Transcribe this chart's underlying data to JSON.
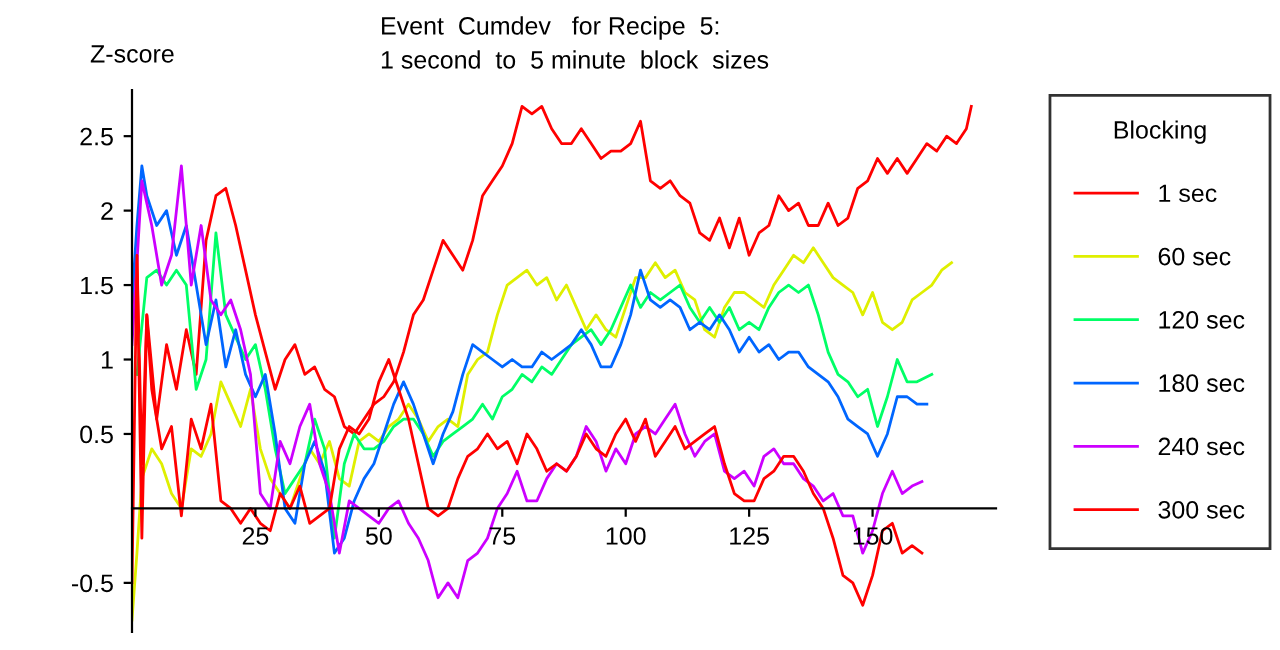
{
  "chart_data": {
    "type": "line",
    "title": "Event  Cumdev   for Recipe  5:",
    "subtitle": "1 second  to  5 minute  block  sizes",
    "ylabel": "Z-score",
    "legend_title": "Blocking",
    "legend": "right",
    "grid": false,
    "marker": "none",
    "line_style": "solid",
    "xlim": [
      0,
      175
    ],
    "ylim": [
      -0.83,
      2.81
    ],
    "xticks": [
      25,
      50,
      75,
      100,
      125,
      150
    ],
    "yticks": [
      -0.5,
      0.5,
      1,
      1.5,
      2,
      2.5
    ],
    "series": [
      {
        "name": "1 sec",
        "color": "#ff0000",
        "x": [
          0,
          1,
          2,
          3,
          5,
          7,
          9,
          11,
          13,
          15,
          17,
          19,
          21,
          23,
          25,
          27,
          29,
          31,
          33,
          35,
          37,
          39,
          41,
          43,
          45,
          47,
          49,
          51,
          53,
          55,
          57,
          59,
          61,
          63,
          65,
          67,
          69,
          71,
          73,
          75,
          77,
          79,
          81,
          83,
          85,
          87,
          89,
          91,
          93,
          95,
          97,
          99,
          101,
          103,
          105,
          107,
          109,
          111,
          113,
          115,
          117,
          119,
          121,
          123,
          125,
          127,
          129,
          131,
          133,
          135,
          137,
          139,
          141,
          143,
          145,
          147,
          149,
          151,
          153,
          155,
          157,
          159,
          161,
          163,
          165,
          167,
          169,
          170
        ],
        "values": [
          1.2,
          1.7,
          0.3,
          1.3,
          0.6,
          1.1,
          0.8,
          1.2,
          0.9,
          1.8,
          2.1,
          2.15,
          1.9,
          1.6,
          1.3,
          1.05,
          0.8,
          1.0,
          1.1,
          0.9,
          0.95,
          0.8,
          0.75,
          0.55,
          0.5,
          0.6,
          0.7,
          0.75,
          0.85,
          1.05,
          1.3,
          1.4,
          1.6,
          1.8,
          1.7,
          1.6,
          1.8,
          2.1,
          2.2,
          2.3,
          2.45,
          2.7,
          2.65,
          2.7,
          2.55,
          2.45,
          2.45,
          2.55,
          2.45,
          2.35,
          2.4,
          2.4,
          2.45,
          2.6,
          2.2,
          2.15,
          2.2,
          2.1,
          2.05,
          1.85,
          1.8,
          1.95,
          1.75,
          1.95,
          1.7,
          1.85,
          1.9,
          2.1,
          2.0,
          2.05,
          1.9,
          1.9,
          2.05,
          1.9,
          1.95,
          2.15,
          2.2,
          2.35,
          2.25,
          2.35,
          2.25,
          2.35,
          2.45,
          2.4,
          2.5,
          2.45,
          2.55,
          2.7
        ]
      },
      {
        "name": "60 sec",
        "color": "#dfef00",
        "x": [
          0,
          1,
          2,
          4,
          6,
          8,
          10,
          12,
          14,
          16,
          18,
          20,
          22,
          24,
          26,
          28,
          30,
          32,
          34,
          36,
          38,
          40,
          42,
          44,
          46,
          48,
          50,
          52,
          54,
          56,
          58,
          60,
          62,
          64,
          66,
          68,
          70,
          72,
          74,
          76,
          78,
          80,
          82,
          84,
          86,
          88,
          90,
          92,
          94,
          96,
          98,
          100,
          102,
          104,
          106,
          108,
          110,
          112,
          114,
          116,
          118,
          120,
          122,
          124,
          126,
          128,
          130,
          132,
          134,
          136,
          138,
          140,
          142,
          144,
          146,
          148,
          150,
          152,
          154,
          156,
          158,
          160,
          162,
          164,
          166
        ],
        "values": [
          -0.75,
          -0.3,
          0.2,
          0.4,
          0.3,
          0.1,
          0.0,
          0.4,
          0.35,
          0.5,
          0.85,
          0.7,
          0.55,
          0.8,
          0.4,
          0.2,
          0.1,
          0.0,
          0.2,
          0.4,
          0.3,
          0.45,
          0.2,
          0.15,
          0.45,
          0.5,
          0.45,
          0.55,
          0.6,
          0.7,
          0.6,
          0.45,
          0.55,
          0.6,
          0.55,
          0.9,
          1.0,
          1.05,
          1.3,
          1.5,
          1.55,
          1.6,
          1.5,
          1.55,
          1.4,
          1.5,
          1.35,
          1.2,
          1.3,
          1.2,
          1.15,
          1.35,
          1.55,
          1.55,
          1.65,
          1.55,
          1.6,
          1.45,
          1.4,
          1.2,
          1.15,
          1.35,
          1.45,
          1.45,
          1.4,
          1.35,
          1.5,
          1.6,
          1.7,
          1.65,
          1.75,
          1.65,
          1.55,
          1.5,
          1.45,
          1.3,
          1.45,
          1.25,
          1.2,
          1.25,
          1.4,
          1.45,
          1.5,
          1.6,
          1.65
        ]
      },
      {
        "name": "120 sec",
        "color": "#00ff66",
        "x": [
          1,
          3,
          5,
          7,
          9,
          11,
          13,
          15,
          17,
          19,
          21,
          23,
          25,
          27,
          29,
          31,
          33,
          35,
          37,
          39,
          41,
          43,
          45,
          47,
          49,
          51,
          53,
          55,
          57,
          59,
          61,
          63,
          65,
          67,
          69,
          71,
          73,
          75,
          77,
          79,
          81,
          83,
          85,
          87,
          89,
          91,
          93,
          95,
          97,
          99,
          101,
          103,
          105,
          107,
          109,
          111,
          113,
          115,
          117,
          119,
          121,
          123,
          125,
          127,
          129,
          131,
          133,
          135,
          137,
          139,
          141,
          143,
          145,
          147,
          149,
          151,
          153,
          155,
          157,
          159,
          162
        ],
        "values": [
          0.9,
          1.55,
          1.6,
          1.5,
          1.6,
          1.5,
          0.8,
          1.0,
          1.85,
          1.3,
          1.15,
          1.0,
          1.1,
          0.8,
          0.4,
          0.1,
          0.2,
          0.3,
          0.6,
          0.4,
          -0.2,
          0.3,
          0.5,
          0.4,
          0.4,
          0.45,
          0.55,
          0.6,
          0.6,
          0.5,
          0.35,
          0.45,
          0.5,
          0.55,
          0.6,
          0.7,
          0.6,
          0.75,
          0.8,
          0.9,
          0.85,
          0.95,
          0.9,
          1.0,
          1.1,
          1.15,
          1.2,
          1.1,
          1.2,
          1.35,
          1.5,
          1.35,
          1.45,
          1.4,
          1.45,
          1.5,
          1.35,
          1.25,
          1.35,
          1.25,
          1.35,
          1.2,
          1.25,
          1.2,
          1.35,
          1.45,
          1.5,
          1.45,
          1.5,
          1.3,
          1.05,
          0.9,
          0.85,
          0.75,
          0.8,
          0.55,
          0.75,
          1.0,
          0.85,
          0.85,
          0.9
        ]
      },
      {
        "name": "180 sec",
        "color": "#0066ff",
        "x": [
          0,
          1,
          2,
          3,
          5,
          7,
          9,
          11,
          13,
          15,
          17,
          19,
          21,
          23,
          25,
          27,
          29,
          31,
          33,
          35,
          37,
          39,
          41,
          43,
          45,
          47,
          49,
          51,
          53,
          55,
          57,
          59,
          61,
          63,
          65,
          67,
          69,
          71,
          73,
          75,
          77,
          79,
          81,
          83,
          85,
          87,
          89,
          91,
          93,
          95,
          97,
          99,
          101,
          103,
          105,
          107,
          109,
          111,
          113,
          115,
          117,
          119,
          121,
          123,
          125,
          127,
          129,
          131,
          133,
          135,
          137,
          139,
          141,
          143,
          145,
          147,
          149,
          151,
          153,
          155,
          157,
          159,
          161
        ],
        "values": [
          1.4,
          1.9,
          2.3,
          2.1,
          1.9,
          2.0,
          1.7,
          1.9,
          1.5,
          1.1,
          1.4,
          0.95,
          1.2,
          0.9,
          0.75,
          0.9,
          0.5,
          0.0,
          -0.1,
          0.3,
          0.45,
          0.25,
          -0.3,
          -0.2,
          0.05,
          0.2,
          0.3,
          0.5,
          0.7,
          0.85,
          0.7,
          0.5,
          0.3,
          0.5,
          0.65,
          0.9,
          1.1,
          1.05,
          1.0,
          0.95,
          1.0,
          0.95,
          0.95,
          1.05,
          1.0,
          1.05,
          1.1,
          1.2,
          1.1,
          0.95,
          0.95,
          1.1,
          1.3,
          1.6,
          1.4,
          1.35,
          1.4,
          1.35,
          1.2,
          1.25,
          1.2,
          1.3,
          1.2,
          1.05,
          1.15,
          1.05,
          1.1,
          1.0,
          1.05,
          1.05,
          0.95,
          0.9,
          0.85,
          0.75,
          0.6,
          0.55,
          0.5,
          0.35,
          0.5,
          0.75,
          0.75,
          0.7,
          0.7
        ]
      },
      {
        "name": "240 sec",
        "color": "#cc00ff",
        "x": [
          0,
          2,
          4,
          6,
          8,
          10,
          12,
          14,
          16,
          18,
          20,
          22,
          24,
          26,
          28,
          30,
          32,
          34,
          36,
          38,
          40,
          42,
          44,
          46,
          48,
          50,
          52,
          54,
          56,
          58,
          60,
          62,
          64,
          66,
          68,
          70,
          72,
          74,
          76,
          78,
          80,
          82,
          84,
          86,
          88,
          90,
          92,
          94,
          96,
          98,
          100,
          102,
          104,
          106,
          108,
          110,
          112,
          114,
          116,
          118,
          120,
          122,
          124,
          126,
          128,
          130,
          132,
          134,
          136,
          138,
          140,
          142,
          144,
          146,
          148,
          150,
          152,
          154,
          156,
          158,
          160
        ],
        "values": [
          1.1,
          2.2,
          1.9,
          1.5,
          1.7,
          2.3,
          1.5,
          1.9,
          1.4,
          1.3,
          1.4,
          1.2,
          0.9,
          0.1,
          0.0,
          0.45,
          0.3,
          0.55,
          0.7,
          0.3,
          0.1,
          -0.3,
          0.05,
          0.0,
          -0.05,
          -0.1,
          0.0,
          0.05,
          -0.1,
          -0.2,
          -0.35,
          -0.6,
          -0.5,
          -0.6,
          -0.35,
          -0.3,
          -0.2,
          0.0,
          0.1,
          0.25,
          0.05,
          0.05,
          0.2,
          0.3,
          0.25,
          0.35,
          0.55,
          0.45,
          0.25,
          0.4,
          0.3,
          0.5,
          0.55,
          0.5,
          0.6,
          0.7,
          0.5,
          0.35,
          0.45,
          0.5,
          0.25,
          0.2,
          0.25,
          0.15,
          0.35,
          0.4,
          0.3,
          0.3,
          0.2,
          0.15,
          0.05,
          0.1,
          -0.05,
          -0.05,
          -0.3,
          -0.15,
          0.1,
          0.25,
          0.1,
          0.15,
          0.18
        ]
      },
      {
        "name": "300 sec",
        "color": "#ff0000",
        "x": [
          0,
          1,
          2,
          3,
          4,
          6,
          8,
          10,
          12,
          14,
          16,
          18,
          20,
          22,
          24,
          26,
          28,
          30,
          32,
          34,
          36,
          38,
          40,
          42,
          44,
          46,
          48,
          50,
          52,
          54,
          56,
          58,
          60,
          62,
          64,
          66,
          68,
          70,
          72,
          74,
          76,
          78,
          80,
          82,
          84,
          86,
          88,
          90,
          92,
          94,
          96,
          98,
          100,
          102,
          104,
          106,
          108,
          110,
          112,
          114,
          116,
          118,
          120,
          122,
          124,
          126,
          128,
          130,
          132,
          134,
          136,
          138,
          140,
          142,
          144,
          146,
          148,
          150,
          152,
          154,
          156,
          158,
          160
        ],
        "values": [
          -0.5,
          1.7,
          -0.2,
          1.3,
          0.8,
          0.4,
          0.55,
          -0.05,
          0.6,
          0.4,
          0.7,
          0.05,
          0.0,
          -0.1,
          0.0,
          -0.1,
          -0.15,
          0.1,
          0.0,
          0.15,
          -0.1,
          -0.05,
          0.0,
          0.4,
          0.55,
          0.5,
          0.6,
          0.85,
          1.0,
          0.8,
          0.6,
          0.3,
          0.0,
          -0.05,
          0.0,
          0.2,
          0.35,
          0.4,
          0.5,
          0.4,
          0.45,
          0.3,
          0.5,
          0.4,
          0.25,
          0.3,
          0.25,
          0.35,
          0.5,
          0.4,
          0.35,
          0.5,
          0.6,
          0.45,
          0.6,
          0.35,
          0.45,
          0.55,
          0.4,
          0.45,
          0.5,
          0.55,
          0.3,
          0.1,
          0.05,
          0.05,
          0.2,
          0.25,
          0.35,
          0.35,
          0.25,
          0.1,
          0.0,
          -0.2,
          -0.45,
          -0.5,
          -0.65,
          -0.45,
          -0.15,
          -0.1,
          -0.3,
          -0.25,
          -0.3
        ]
      }
    ]
  }
}
